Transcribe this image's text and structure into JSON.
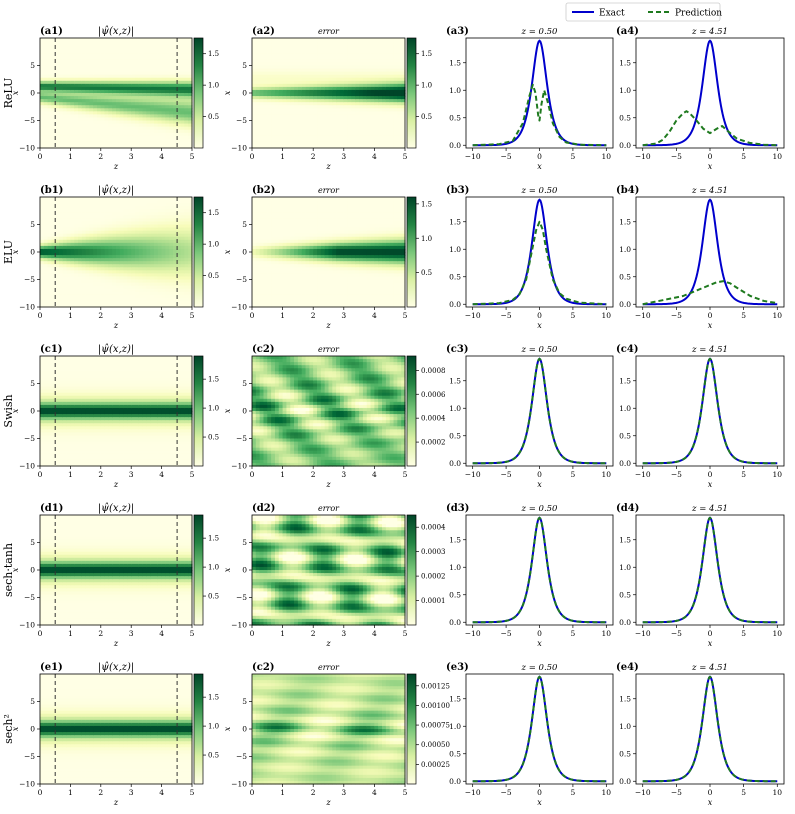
{
  "legend": {
    "position": "top-right",
    "items": [
      {
        "label": "Exact",
        "color": "#0000cc",
        "style": "solid"
      },
      {
        "label": "Prediction",
        "color": "#1f7a1f",
        "style": "dashed"
      }
    ]
  },
  "colors": {
    "colormap": "YlGn",
    "exact": "#0000cc",
    "prediction": "#1f7a1f",
    "cut_line": "#333333"
  },
  "chart_data": [
    {
      "type": "heatmap-row",
      "row_label": "ReLU",
      "panels": {
        "field": {
          "tag": "(a1)",
          "title": "|ψ̂(x,z)|",
          "colorbar_ticks": [
            "0.5",
            "1.0",
            "1.5"
          ],
          "cbar_max": 1.75,
          "cbar_tick_values": [
            0.5,
            1.0,
            1.5
          ]
        },
        "error": {
          "tag": "(a2)",
          "title": "error",
          "colorbar_ticks": [
            "0.5",
            "1.0",
            "1.5"
          ],
          "cbar_max": 1.75,
          "cbar_tick_values": [
            0.5,
            1.0,
            1.5
          ]
        },
        "cut1": {
          "tag": "(a3)",
          "title": "z = 0.50",
          "z": 0.5,
          "exact": {
            "amp": 1.9,
            "center": 0,
            "width": 1.0
          },
          "prediction": [
            [
              -10,
              0
            ],
            [
              -6,
              0.02
            ],
            [
              -4,
              0.08
            ],
            [
              -2.5,
              0.4
            ],
            [
              -1.5,
              0.9
            ],
            [
              -1,
              1.1
            ],
            [
              -0.6,
              0.95
            ],
            [
              -0.2,
              0.55
            ],
            [
              0,
              0.45
            ],
            [
              0.3,
              0.75
            ],
            [
              0.7,
              1.0
            ],
            [
              1.2,
              0.8
            ],
            [
              2,
              0.4
            ],
            [
              3,
              0.15
            ],
            [
              4,
              0.05
            ],
            [
              6,
              0.01
            ],
            [
              10,
              0
            ]
          ],
          "yticks": [
            0,
            0.5,
            1.0,
            1.5
          ],
          "ylim": [
            -0.05,
            1.95
          ]
        },
        "cut2": {
          "tag": "(a4)",
          "title": "z = 4.51",
          "z": 4.51,
          "exact": {
            "amp": 1.9,
            "center": 0,
            "width": 1.0
          },
          "prediction": [
            [
              -10,
              0
            ],
            [
              -8,
              0.03
            ],
            [
              -7,
              0.1
            ],
            [
              -6,
              0.25
            ],
            [
              -5,
              0.45
            ],
            [
              -4,
              0.58
            ],
            [
              -3.5,
              0.62
            ],
            [
              -3,
              0.58
            ],
            [
              -2,
              0.45
            ],
            [
              -1,
              0.3
            ],
            [
              0,
              0.22
            ],
            [
              1,
              0.3
            ],
            [
              1.8,
              0.35
            ],
            [
              3,
              0.22
            ],
            [
              4,
              0.12
            ],
            [
              6,
              0.04
            ],
            [
              8,
              0.01
            ],
            [
              10,
              0
            ]
          ],
          "yticks": [
            0,
            0.5,
            1.0,
            1.5
          ],
          "ylim": [
            -0.05,
            1.95
          ]
        }
      }
    },
    {
      "type": "heatmap-row",
      "row_label": "ELU",
      "panels": {
        "field": {
          "tag": "(b1)",
          "title": "|ψ̂(x,z)|",
          "colorbar_ticks": [
            "0.5",
            "1.0",
            "1.5"
          ],
          "cbar_max": 1.75,
          "cbar_tick_values": [
            0.5,
            1.0,
            1.5
          ]
        },
        "error": {
          "tag": "(b2)",
          "title": "error",
          "colorbar_ticks": [
            "0.5",
            "1.0",
            "1.5"
          ],
          "cbar_max": 1.6,
          "cbar_tick_values": [
            0.5,
            1.0,
            1.5
          ]
        },
        "cut1": {
          "tag": "(b3)",
          "title": "z = 0.50",
          "z": 0.5,
          "exact": {
            "amp": 1.9,
            "center": 0,
            "width": 1.0
          },
          "prediction": [
            [
              -10,
              0
            ],
            [
              -6,
              0.02
            ],
            [
              -4,
              0.08
            ],
            [
              -3,
              0.18
            ],
            [
              -2,
              0.45
            ],
            [
              -1,
              1.05
            ],
            [
              -0.5,
              1.35
            ],
            [
              0,
              1.5
            ],
            [
              0.5,
              1.35
            ],
            [
              1,
              1.0
            ],
            [
              2,
              0.45
            ],
            [
              3,
              0.2
            ],
            [
              4,
              0.1
            ],
            [
              6,
              0.03
            ],
            [
              10,
              0
            ]
          ],
          "yticks": [
            0,
            0.5,
            1.0,
            1.5
          ],
          "ylim": [
            -0.05,
            1.95
          ]
        },
        "cut2": {
          "tag": "(b4)",
          "title": "z = 4.51",
          "z": 4.51,
          "exact": {
            "amp": 1.9,
            "center": 0,
            "width": 1.0
          },
          "prediction": [
            [
              -10,
              0
            ],
            [
              -8,
              0.05
            ],
            [
              -6,
              0.1
            ],
            [
              -4,
              0.15
            ],
            [
              -2,
              0.25
            ],
            [
              0,
              0.35
            ],
            [
              1,
              0.4
            ],
            [
              2,
              0.42
            ],
            [
              3,
              0.38
            ],
            [
              4,
              0.3
            ],
            [
              6,
              0.15
            ],
            [
              8,
              0.06
            ],
            [
              10,
              0.02
            ]
          ],
          "yticks": [
            0,
            0.5,
            1.0,
            1.5
          ],
          "ylim": [
            -0.05,
            1.95
          ]
        }
      }
    },
    {
      "type": "heatmap-row",
      "row_label": "Swish",
      "panels": {
        "field": {
          "tag": "(c1)",
          "title": "|ψ̂(x,z)|",
          "colorbar_ticks": [
            "0.5",
            "1.0",
            "1.5"
          ],
          "cbar_max": 1.9,
          "cbar_tick_values": [
            0.5,
            1.0,
            1.5
          ]
        },
        "error": {
          "tag": "(c2)",
          "title": "error",
          "colorbar_ticks": [
            "0.0002",
            "0.0004",
            "0.0006",
            "0.0008"
          ],
          "cbar_max": 0.00092,
          "cbar_tick_values": [
            0.0002,
            0.0004,
            0.0006,
            0.0008
          ]
        },
        "cut1": {
          "tag": "(c3)",
          "title": "z = 0.50",
          "z": 0.5,
          "exact": {
            "amp": 1.9,
            "center": 0,
            "width": 1.0
          },
          "prediction": "exact",
          "yticks": [
            0,
            0.5,
            1.0,
            1.5
          ],
          "ylim": [
            -0.05,
            1.95
          ]
        },
        "cut2": {
          "tag": "(c4)",
          "title": "z = 4.51",
          "z": 4.51,
          "exact": {
            "amp": 1.9,
            "center": 0,
            "width": 1.0
          },
          "prediction": "exact",
          "yticks": [
            0,
            0.5,
            1.0,
            1.5
          ],
          "ylim": [
            -0.05,
            1.95
          ]
        }
      }
    },
    {
      "type": "heatmap-row",
      "row_label": "sech·tanh",
      "panels": {
        "field": {
          "tag": "(d1)",
          "title": "|ψ̂(x,z)|",
          "colorbar_ticks": [
            "0.5",
            "1.0",
            "1.5"
          ],
          "cbar_max": 1.9,
          "cbar_tick_values": [
            0.5,
            1.0,
            1.5
          ]
        },
        "error": {
          "tag": "(d2)",
          "title": "error",
          "colorbar_ticks": [
            "0.0001",
            "0.0002",
            "0.0003",
            "0.0004"
          ],
          "cbar_max": 0.00045,
          "cbar_tick_values": [
            0.0001,
            0.0002,
            0.0003,
            0.0004
          ]
        },
        "cut1": {
          "tag": "(d3)",
          "title": "z = 0.50",
          "z": 0.5,
          "exact": {
            "amp": 1.9,
            "center": 0,
            "width": 1.0
          },
          "prediction": "exact",
          "yticks": [
            0,
            0.5,
            1.0,
            1.5
          ],
          "ylim": [
            -0.05,
            1.95
          ]
        },
        "cut2": {
          "tag": "(d4)",
          "title": "z = 4.51",
          "z": 4.51,
          "exact": {
            "amp": 1.9,
            "center": 0,
            "width": 1.0
          },
          "prediction": "exact",
          "yticks": [
            0,
            0.5,
            1.0,
            1.5
          ],
          "ylim": [
            -0.05,
            1.95
          ]
        }
      }
    },
    {
      "type": "heatmap-row",
      "row_label": "sech²",
      "panels": {
        "field": {
          "tag": "(e1)",
          "title": "|ψ̂(x,z)|",
          "colorbar_ticks": [
            "0.5",
            "1.0",
            "1.5"
          ],
          "cbar_max": 1.9,
          "cbar_tick_values": [
            0.5,
            1.0,
            1.5
          ]
        },
        "error": {
          "tag": "(c2)",
          "title": "error",
          "colorbar_ticks": [
            "0.00025",
            "0.00050",
            "0.00075",
            "0.00100",
            "0.00125"
          ],
          "cbar_max": 0.0014,
          "cbar_tick_values": [
            0.00025,
            0.0005,
            0.00075,
            0.001,
            0.00125
          ]
        },
        "cut1": {
          "tag": "(e3)",
          "title": "z = 0.50",
          "z": 0.5,
          "exact": {
            "amp": 1.9,
            "center": 0,
            "width": 1.0
          },
          "prediction": "exact",
          "yticks": [
            0,
            0.5,
            1.0,
            1.5
          ],
          "ylim": [
            -0.05,
            1.95
          ]
        },
        "cut2": {
          "tag": "(e4)",
          "title": "z = 4.51",
          "z": 4.51,
          "exact": {
            "amp": 1.9,
            "center": 0,
            "width": 1.0
          },
          "prediction": "exact",
          "yticks": [
            0,
            0.5,
            1.0,
            1.5
          ],
          "ylim": [
            -0.05,
            1.95
          ]
        }
      }
    }
  ],
  "axes": {
    "map_xlabel": "z",
    "map_ylabel": "x",
    "cut_xlabel": "x",
    "map_xticks": [
      "0",
      "1",
      "2",
      "3",
      "4",
      "5"
    ],
    "map_yticks": [
      "-10",
      "-5",
      "0",
      "5"
    ],
    "cut_xticks": [
      "-10",
      "-5",
      "0",
      "5",
      "10"
    ],
    "map_xlim": [
      0,
      5
    ],
    "map_ylim": [
      -10,
      10
    ],
    "cut_xlim": [
      -11,
      11
    ],
    "cut_lines_z": [
      0.5,
      4.51
    ]
  }
}
